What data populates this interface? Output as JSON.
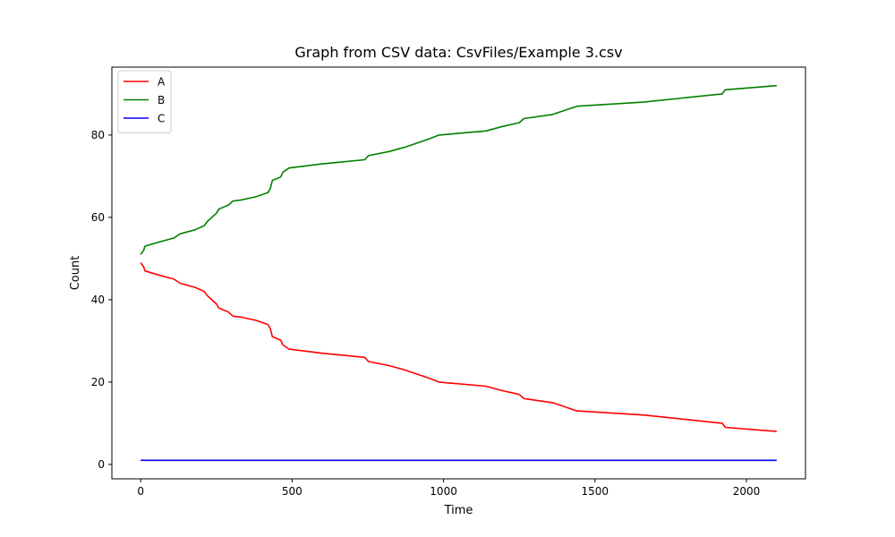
{
  "chart_data": {
    "type": "line",
    "title": "Graph from CSV data: CsvFiles/Example 3.csv",
    "xlabel": "Time",
    "ylabel": "Count",
    "xlim": [
      -95,
      2195
    ],
    "ylim": [
      -3.5,
      96.5
    ],
    "xticks": [
      0,
      500,
      1000,
      1500,
      2000
    ],
    "yticks": [
      0,
      20,
      40,
      60,
      80
    ],
    "grid": false,
    "legend_placement": "upper-left",
    "series": [
      {
        "name": "A",
        "color": "#ff0000",
        "points": [
          [
            0,
            49
          ],
          [
            10,
            48
          ],
          [
            14,
            47
          ],
          [
            60,
            46
          ],
          [
            110,
            45
          ],
          [
            130,
            44
          ],
          [
            180,
            43
          ],
          [
            210,
            42
          ],
          [
            220,
            41
          ],
          [
            250,
            39
          ],
          [
            258,
            38
          ],
          [
            290,
            37
          ],
          [
            305,
            36
          ],
          [
            330,
            35.8
          ],
          [
            380,
            35
          ],
          [
            420,
            34
          ],
          [
            428,
            33
          ],
          [
            435,
            31
          ],
          [
            462,
            30.2
          ],
          [
            470,
            29
          ],
          [
            490,
            28
          ],
          [
            600,
            27
          ],
          [
            740,
            26
          ],
          [
            752,
            25
          ],
          [
            820,
            24
          ],
          [
            870,
            23
          ],
          [
            950,
            21
          ],
          [
            985,
            20
          ],
          [
            1140,
            19
          ],
          [
            1190,
            18
          ],
          [
            1250,
            17
          ],
          [
            1265,
            16
          ],
          [
            1360,
            15
          ],
          [
            1440,
            13
          ],
          [
            1660,
            12
          ],
          [
            1920,
            10
          ],
          [
            1930,
            9
          ],
          [
            2100,
            8
          ]
        ]
      },
      {
        "name": "B",
        "color": "#008000",
        "points": [
          [
            0,
            51
          ],
          [
            10,
            52
          ],
          [
            14,
            53
          ],
          [
            60,
            54
          ],
          [
            110,
            55
          ],
          [
            130,
            56
          ],
          [
            180,
            57
          ],
          [
            210,
            58
          ],
          [
            220,
            59
          ],
          [
            250,
            61
          ],
          [
            258,
            62
          ],
          [
            290,
            63
          ],
          [
            305,
            64
          ],
          [
            330,
            64.2
          ],
          [
            380,
            65
          ],
          [
            420,
            66
          ],
          [
            428,
            67
          ],
          [
            435,
            69
          ],
          [
            462,
            69.8
          ],
          [
            470,
            71
          ],
          [
            490,
            72
          ],
          [
            600,
            73
          ],
          [
            740,
            74
          ],
          [
            752,
            75
          ],
          [
            820,
            76
          ],
          [
            870,
            77
          ],
          [
            950,
            79
          ],
          [
            985,
            80
          ],
          [
            1140,
            81
          ],
          [
            1190,
            82
          ],
          [
            1250,
            83
          ],
          [
            1265,
            84
          ],
          [
            1360,
            85
          ],
          [
            1440,
            87
          ],
          [
            1660,
            88
          ],
          [
            1920,
            90
          ],
          [
            1930,
            91
          ],
          [
            2100,
            92
          ]
        ]
      },
      {
        "name": "C",
        "color": "#0000ff",
        "points": [
          [
            0,
            1
          ],
          [
            2100,
            1
          ]
        ]
      }
    ]
  }
}
